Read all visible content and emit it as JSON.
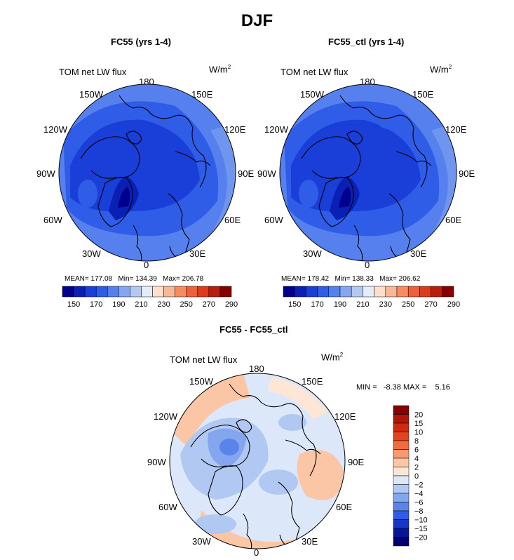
{
  "figure": {
    "title": "DJF",
    "panels": [
      {
        "title": "FC55 (yrs 1-4)",
        "variable": "TOM net LW flux",
        "units": "W/m",
        "units_exp": "2",
        "stats": {
          "mean": "MEAN= 177.08",
          "min": "Min= 134.39",
          "max": "Max= 206.78"
        }
      },
      {
        "title": "FC55_ctl (yrs 1-4)",
        "variable": "TOM net LW flux",
        "units": "W/m",
        "units_exp": "2",
        "stats": {
          "mean": "MEAN= 178.42",
          "min": "Min= 138.33",
          "max": "Max= 206.62"
        }
      },
      {
        "title": "FC55 - FC55_ctl",
        "variable": "TOM net LW flux",
        "units": "W/m",
        "units_exp": "2",
        "stats_line": "MIN =   -8.38 MAX =    5.16"
      }
    ],
    "longitude_labels": {
      "top": "180",
      "bottom": "0",
      "left": "90W",
      "right": "90E",
      "upper_left_outer": "150W",
      "upper_right_outer": "150E",
      "mid_left_upper": "120W",
      "mid_right_upper": "120E",
      "mid_left_lower": "60W",
      "mid_right_lower": "60E",
      "lower_left": "30W",
      "lower_right": "30E"
    },
    "abs_colorbar": {
      "ticks": [
        "150",
        "170",
        "190",
        "210",
        "230",
        "250",
        "270",
        "290"
      ],
      "colors": [
        "#00008c",
        "#0a1fb4",
        "#1a3fd8",
        "#2f5de8",
        "#5580ee",
        "#86a6f0",
        "#b4c9f2",
        "#e4ecfa",
        "#fde0cc",
        "#f8b896",
        "#f48c64",
        "#ee5f3c",
        "#de3a1c",
        "#b81e0c",
        "#870000"
      ]
    },
    "diff_colorbar": {
      "labels": [
        "20",
        "15",
        "10",
        "8",
        "6",
        "4",
        "2",
        "0",
        "−2",
        "−4",
        "−6",
        "−8",
        "−10",
        "−15",
        "−20"
      ],
      "colors": [
        "#870000",
        "#b21608",
        "#cf2a10",
        "#e4431e",
        "#f26a3e",
        "#f79a72",
        "#fbc6a6",
        "#fde6d6",
        "#dce8fa",
        "#b0c8f2",
        "#84a6ee",
        "#5a84ea",
        "#2f5de6",
        "#1736c8",
        "#07159c",
        "#00006e"
      ]
    },
    "map_colors": {
      "abs_fill_light": "#5580ee",
      "abs_fill_mid": "#2f5de8",
      "abs_fill_dark": "#1a3fd8",
      "abs_fill_deep": "#0a1fb4",
      "abs_fill_core": "#00008c",
      "abs_fill_edge": "#86a6f0",
      "diff_bg": "#dce8fa",
      "diff_warm": "#fbc6a6",
      "diff_warm2": "#fde6d6",
      "diff_cool": "#b0c8f2",
      "diff_cool2": "#84a6ee",
      "diff_cool3": "#5a84ea",
      "coast": "#000000"
    }
  },
  "chart_data": [
    {
      "type": "heatmap",
      "title": "FC55 (yrs 1-4)",
      "variable": "TOM net LW flux",
      "units": "W/m^2",
      "projection": "north polar stereographic",
      "mean": 177.08,
      "min": 134.39,
      "max": 206.78,
      "contour_levels": [
        150,
        160,
        170,
        180,
        190,
        200,
        210,
        220,
        230,
        240,
        250,
        260,
        270,
        280,
        290
      ]
    },
    {
      "type": "heatmap",
      "title": "FC55_ctl (yrs 1-4)",
      "variable": "TOM net LW flux",
      "units": "W/m^2",
      "projection": "north polar stereographic",
      "mean": 178.42,
      "min": 138.33,
      "max": 206.62,
      "contour_levels": [
        150,
        160,
        170,
        180,
        190,
        200,
        210,
        220,
        230,
        240,
        250,
        260,
        270,
        280,
        290
      ]
    },
    {
      "type": "heatmap",
      "title": "FC55 - FC55_ctl",
      "variable": "TOM net LW flux",
      "units": "W/m^2",
      "projection": "north polar stereographic",
      "min": -8.38,
      "max": 5.16,
      "contour_levels": [
        -20,
        -15,
        -10,
        -8,
        -6,
        -4,
        -2,
        0,
        2,
        4,
        6,
        8,
        10,
        15,
        20
      ]
    }
  ]
}
